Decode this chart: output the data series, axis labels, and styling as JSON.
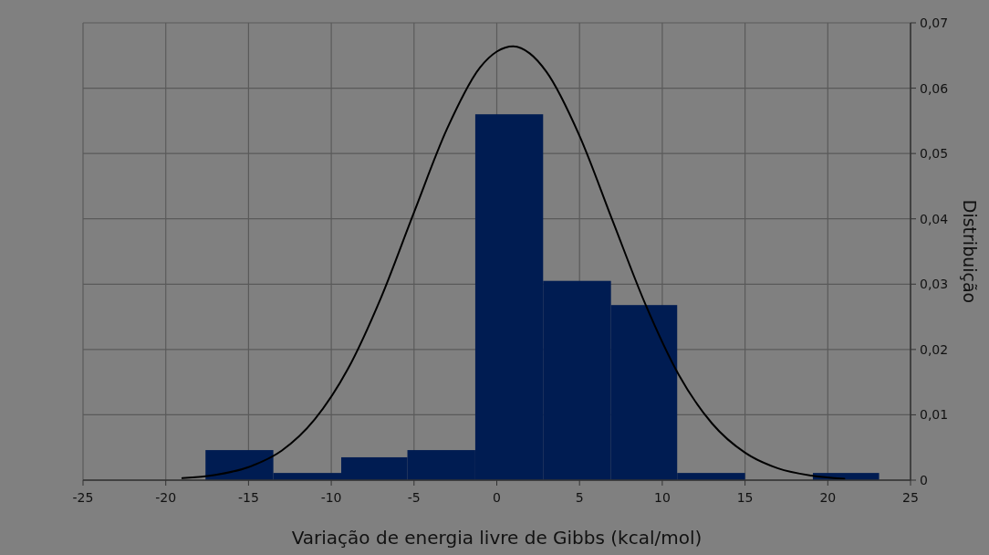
{
  "chart_data": {
    "type": "histogram",
    "xlabel": "Variação de energia livre de Gibbs (kcal/mol)",
    "ylabel": "Distribuição",
    "bins": [
      -17.6,
      -13.5,
      -9.4,
      -5.4,
      -1.3,
      2.8,
      6.9,
      10.9,
      15.0,
      19.1,
      23.1
    ],
    "values": [
      0.0046,
      0.0011,
      0.0035,
      0.0046,
      0.056,
      0.0305,
      0.0268,
      0.0011,
      0,
      0.0011
    ],
    "color": "#001c52",
    "series": [
      {
        "type": "line",
        "color": "#000000",
        "x": [
          -19,
          -17,
          -15,
          -13,
          -11,
          -9,
          -7,
          -5,
          -3,
          -1,
          0,
          1,
          2,
          3,
          5,
          7,
          9,
          11,
          13,
          15,
          17,
          19,
          21
        ],
        "values": [
          0.0003,
          0.0008,
          0.002,
          0.0045,
          0.0093,
          0.017,
          0.0279,
          0.041,
          0.0538,
          0.0632,
          0.0656,
          0.0664,
          0.0653,
          0.0625,
          0.0527,
          0.0397,
          0.0268,
          0.0161,
          0.0087,
          0.0042,
          0.0018,
          0.0007,
          0.0002
        ]
      }
    ],
    "xlim": [
      -25,
      25
    ],
    "xticks": [
      -25,
      -20,
      -15,
      -10,
      -5,
      0,
      5,
      10,
      15,
      20,
      25
    ],
    "ylim": [
      0,
      0.07
    ],
    "yticks": [
      0,
      {
        "value": 0.01,
        "label": "0,01"
      },
      {
        "value": 0.02,
        "label": "0,02"
      },
      {
        "value": 0.03,
        "label": "0,03"
      },
      {
        "value": 0.04,
        "label": "0,04"
      },
      {
        "value": 0.05,
        "label": "0,05"
      },
      {
        "value": 0.06,
        "label": "0,06"
      },
      {
        "value": 0.07,
        "label": "0,07"
      }
    ],
    "grid": true
  }
}
